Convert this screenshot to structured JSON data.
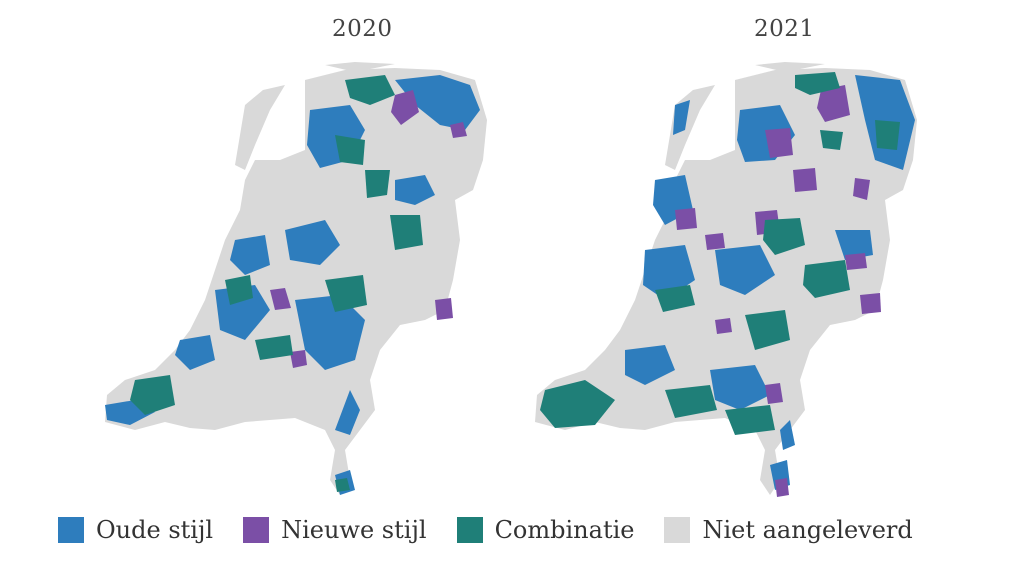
{
  "maps": [
    {
      "year": "2020"
    },
    {
      "year": "2021"
    }
  ],
  "legend": [
    {
      "key": "oude",
      "label": "Oude stijl",
      "color": "#2e7dbd"
    },
    {
      "key": "nieuwe",
      "label": "Nieuwe stijl",
      "color": "#7b4fa6"
    },
    {
      "key": "combinatie",
      "label": "Combinatie",
      "color": "#1f7f78"
    },
    {
      "key": "niet",
      "label": "Niet aangeleverd",
      "color": "#d9d9d9"
    }
  ]
}
